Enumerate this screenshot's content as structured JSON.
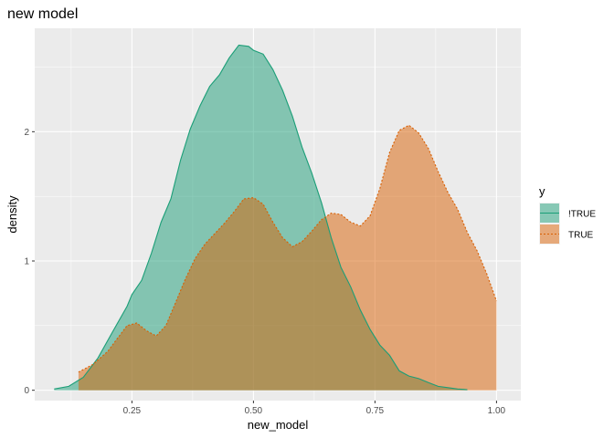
{
  "chart_data": {
    "type": "area",
    "title": "new model",
    "xlabel": "new_model",
    "ylabel": "density",
    "xlim": [
      0.05,
      1.05
    ],
    "ylim": [
      -0.08,
      2.8
    ],
    "x_ticks": [
      0.25,
      0.5,
      0.75,
      1.0
    ],
    "x_tick_labels": [
      "0.25",
      "0.50",
      "0.75",
      "1.00"
    ],
    "y_ticks": [
      0,
      1,
      2
    ],
    "y_tick_labels": [
      "0",
      "1",
      "2"
    ],
    "grid": true,
    "legend": {
      "title": "y",
      "position": "right"
    },
    "series": [
      {
        "name": "!TRUE",
        "fill": "#1b9e77",
        "stroke": "#1b9e77",
        "dash": "solid",
        "x": [
          0.09,
          0.12,
          0.15,
          0.18,
          0.21,
          0.24,
          0.25,
          0.27,
          0.29,
          0.31,
          0.33,
          0.35,
          0.37,
          0.39,
          0.41,
          0.43,
          0.45,
          0.47,
          0.49,
          0.5,
          0.52,
          0.54,
          0.56,
          0.58,
          0.6,
          0.62,
          0.64,
          0.66,
          0.68,
          0.7,
          0.72,
          0.74,
          0.76,
          0.78,
          0.8,
          0.82,
          0.84,
          0.86,
          0.88,
          0.9,
          0.92,
          0.94
        ],
        "y": [
          0.01,
          0.03,
          0.1,
          0.25,
          0.45,
          0.65,
          0.74,
          0.85,
          1.06,
          1.3,
          1.48,
          1.78,
          2.02,
          2.2,
          2.35,
          2.44,
          2.57,
          2.67,
          2.66,
          2.63,
          2.6,
          2.48,
          2.32,
          2.12,
          1.88,
          1.68,
          1.45,
          1.18,
          0.95,
          0.8,
          0.62,
          0.47,
          0.35,
          0.27,
          0.15,
          0.11,
          0.09,
          0.06,
          0.03,
          0.02,
          0.01,
          0.005
        ]
      },
      {
        "name": "TRUE",
        "fill": "#d95f02",
        "stroke": "#d95f02",
        "dash": "dotted",
        "x": [
          0.14,
          0.17,
          0.2,
          0.22,
          0.24,
          0.26,
          0.28,
          0.3,
          0.32,
          0.34,
          0.36,
          0.38,
          0.4,
          0.42,
          0.44,
          0.46,
          0.48,
          0.5,
          0.52,
          0.54,
          0.56,
          0.58,
          0.6,
          0.62,
          0.64,
          0.66,
          0.68,
          0.7,
          0.72,
          0.74,
          0.76,
          0.78,
          0.8,
          0.82,
          0.84,
          0.86,
          0.88,
          0.9,
          0.92,
          0.94,
          0.96,
          0.98,
          1.0
        ],
        "y": [
          0.14,
          0.2,
          0.3,
          0.4,
          0.5,
          0.52,
          0.46,
          0.42,
          0.5,
          0.68,
          0.86,
          1.02,
          1.13,
          1.21,
          1.29,
          1.38,
          1.48,
          1.49,
          1.44,
          1.3,
          1.18,
          1.11,
          1.15,
          1.23,
          1.32,
          1.37,
          1.36,
          1.3,
          1.27,
          1.35,
          1.56,
          1.84,
          2.01,
          2.05,
          1.99,
          1.87,
          1.69,
          1.53,
          1.4,
          1.22,
          1.08,
          0.9,
          0.69
        ]
      }
    ]
  }
}
